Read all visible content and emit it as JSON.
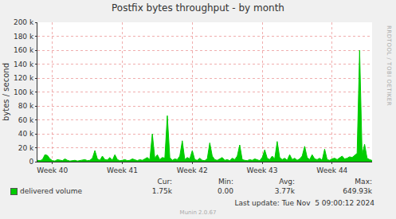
{
  "chart_data": {
    "type": "area",
    "title": "Postfix bytes throughput - by month",
    "y_label": "bytes / second",
    "categories": [
      null,
      null,
      null,
      null,
      null,
      null,
      "Week 40",
      null,
      null,
      null,
      null,
      null,
      null,
      null,
      null,
      null,
      null,
      null,
      null,
      null,
      null,
      null,
      null,
      null,
      null,
      null,
      null,
      null,
      null,
      null,
      null,
      null,
      null,
      null,
      "Week 41",
      null,
      null,
      null,
      null,
      null,
      null,
      null,
      null,
      null,
      null,
      null,
      null,
      null,
      null,
      null,
      null,
      null,
      null,
      null,
      null,
      null,
      null,
      null,
      null,
      null,
      null,
      null,
      "Week 42",
      null,
      null,
      null,
      null,
      null,
      null,
      null,
      null,
      null,
      null,
      null,
      null,
      null,
      null,
      null,
      null,
      null,
      null,
      null,
      null,
      null,
      null,
      null,
      null,
      null,
      null,
      null,
      "Week 43",
      null,
      null,
      null,
      null,
      null,
      null,
      null,
      null,
      null,
      null,
      null,
      null,
      null,
      null,
      null,
      null,
      null,
      null,
      null,
      null,
      null,
      null,
      null,
      null,
      null,
      null,
      null,
      "Week 44",
      null,
      null,
      null,
      null,
      null,
      null,
      null,
      null,
      null,
      null,
      null,
      null,
      null,
      null,
      null,
      null
    ],
    "series": [
      {
        "name": "delivered volume",
        "color": "#00cc00",
        "values": [
          2000,
          1500,
          3000,
          10000,
          9000,
          4000,
          1500,
          1000,
          3000,
          2000,
          1500,
          4000,
          2000,
          1000,
          1500,
          2000,
          1000,
          1500,
          2500,
          3000,
          1500,
          2000,
          5000,
          16000,
          4000,
          2000,
          8000,
          3000,
          2500,
          6000,
          2000,
          10000,
          3000,
          1500,
          2000,
          3000,
          1500,
          2000,
          4000,
          2500,
          1500,
          3000,
          2000,
          4000,
          6000,
          3000,
          40000,
          5000,
          10000,
          3000,
          6000,
          5000,
          66000,
          6000,
          2000,
          4000,
          3000,
          8000,
          30000,
          3000,
          6000,
          4000,
          16000,
          3000,
          2000,
          5000,
          2000,
          1500,
          4000,
          27000,
          8000,
          3000,
          2000,
          4000,
          6000,
          2000,
          3000,
          1500,
          5000,
          3000,
          8000,
          24000,
          3000,
          2000,
          1500,
          3000,
          2000,
          4000,
          2500,
          1500,
          6000,
          17000,
          5000,
          3000,
          8000,
          4000,
          29000,
          6000,
          3000,
          5000,
          2000,
          10000,
          3000,
          5000,
          2000,
          4000,
          8000,
          22000,
          6000,
          3000,
          10000,
          4000,
          3000,
          5000,
          2000,
          18000,
          3000,
          2000,
          4000,
          5000,
          3000,
          6000,
          8000,
          4000,
          5000,
          7000,
          6000,
          9000,
          12000,
          160000,
          10000,
          25000,
          5000,
          3000,
          1750
        ]
      }
    ],
    "ylim": [
      0,
      200000
    ],
    "yticks": [
      0,
      {
        "value": 20000,
        "label": "20 k"
      },
      {
        "value": 40000,
        "label": "40 k"
      },
      {
        "value": 60000,
        "label": "60 k"
      },
      {
        "value": 80000,
        "label": "80 k"
      },
      {
        "value": 100000,
        "label": "100 k"
      },
      {
        "value": 120000,
        "label": "120 k"
      },
      {
        "value": 140000,
        "label": "140 k"
      },
      {
        "value": 160000,
        "label": "160 k"
      },
      {
        "value": 180000,
        "label": "180 k"
      },
      {
        "value": 200000,
        "label": "200 k"
      }
    ],
    "grid": true
  },
  "footer": {
    "stats": [
      {
        "label": "Cur:",
        "value": "1.75k"
      },
      {
        "label": "Min:",
        "value": "0.00"
      },
      {
        "label": "Avg:",
        "value": "3.77k"
      },
      {
        "label": "Max:",
        "value": "649.93k"
      }
    ],
    "last_update": "Last update: Tue Nov  5 09:00:12 2024",
    "credit": "Munin 2.0.67",
    "watermark": "RRDTOOL / TOBI OETIKER"
  }
}
